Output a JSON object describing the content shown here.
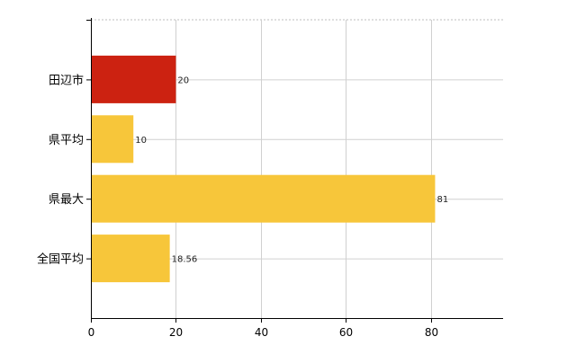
{
  "chart_data": {
    "type": "bar",
    "orientation": "horizontal",
    "categories": [
      "田辺市",
      "県平均",
      "県最大",
      "全国平均"
    ],
    "values": [
      20,
      10,
      81,
      18.56
    ],
    "value_labels": [
      "20",
      "10",
      "81",
      "18.56"
    ],
    "bar_colors": [
      "#cc2211",
      "#f7c63a",
      "#f7c63a",
      "#f7c63a"
    ],
    "xlim": [
      0,
      97
    ],
    "x_ticks": [
      0,
      20,
      40,
      60,
      80
    ],
    "x_tick_labels": [
      "0",
      "20",
      "40",
      "60",
      "80"
    ],
    "grid": true,
    "title": "",
    "xlabel": "",
    "ylabel": ""
  }
}
